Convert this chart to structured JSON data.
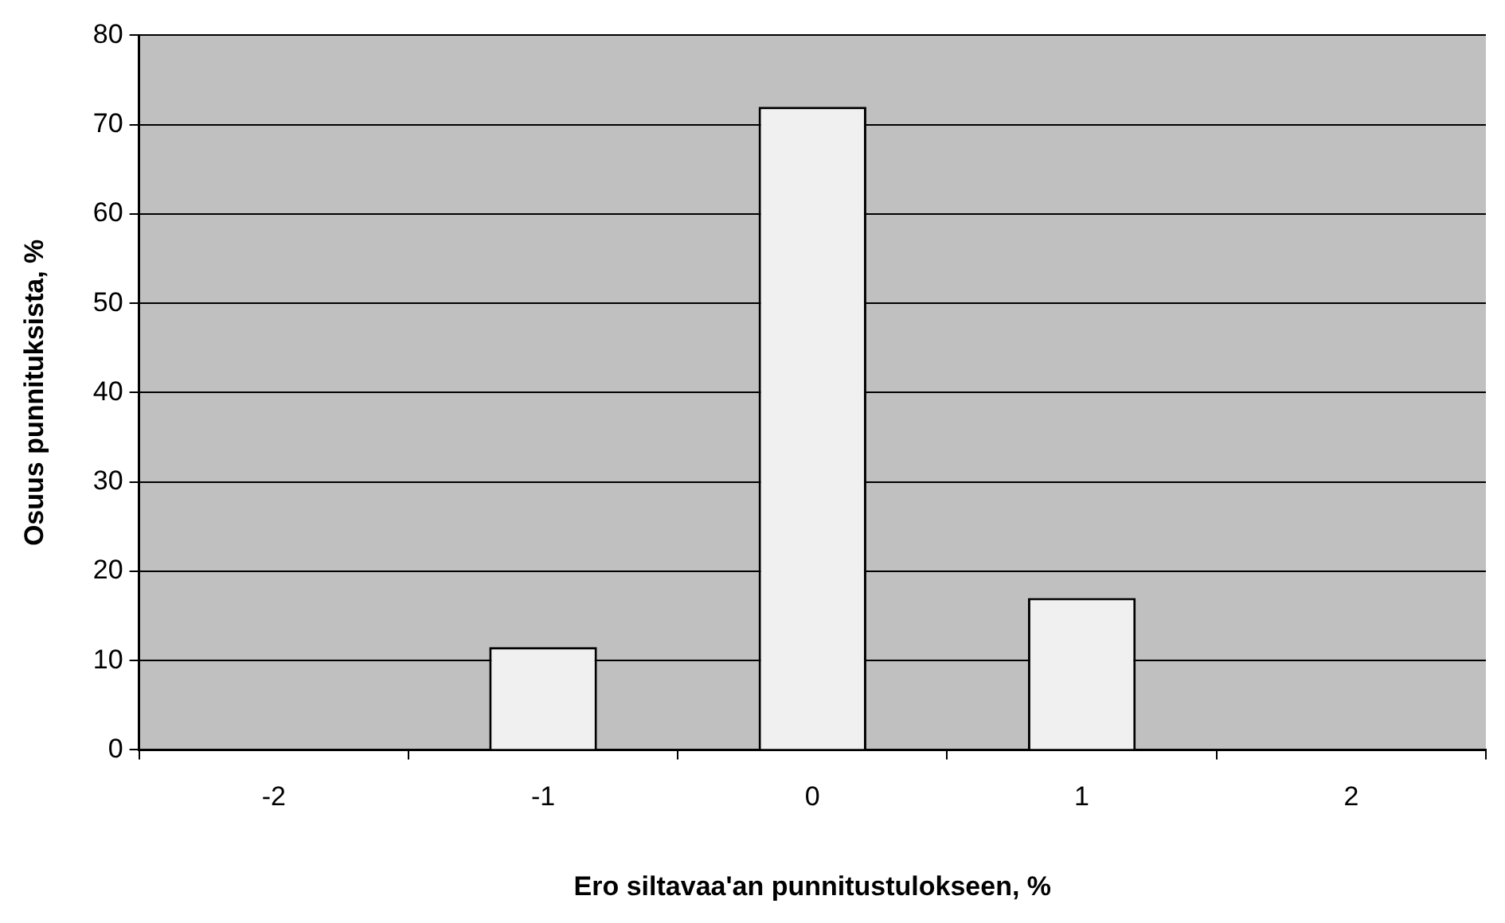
{
  "chart_data": {
    "type": "bar",
    "xlabel": "Ero siltavaa'an punnitustulokseen, %",
    "ylabel": "Osuus punnituksista, %",
    "categories": [
      "-2",
      "-1",
      "0",
      "1",
      "2"
    ],
    "values": [
      null,
      11.5,
      72,
      17,
      null
    ],
    "color": "#f0f0f0",
    "ylim": [
      0,
      80
    ],
    "yticks": [
      0,
      10,
      20,
      30,
      40,
      50,
      60,
      70,
      80
    ],
    "grid": "y",
    "legend": false
  }
}
